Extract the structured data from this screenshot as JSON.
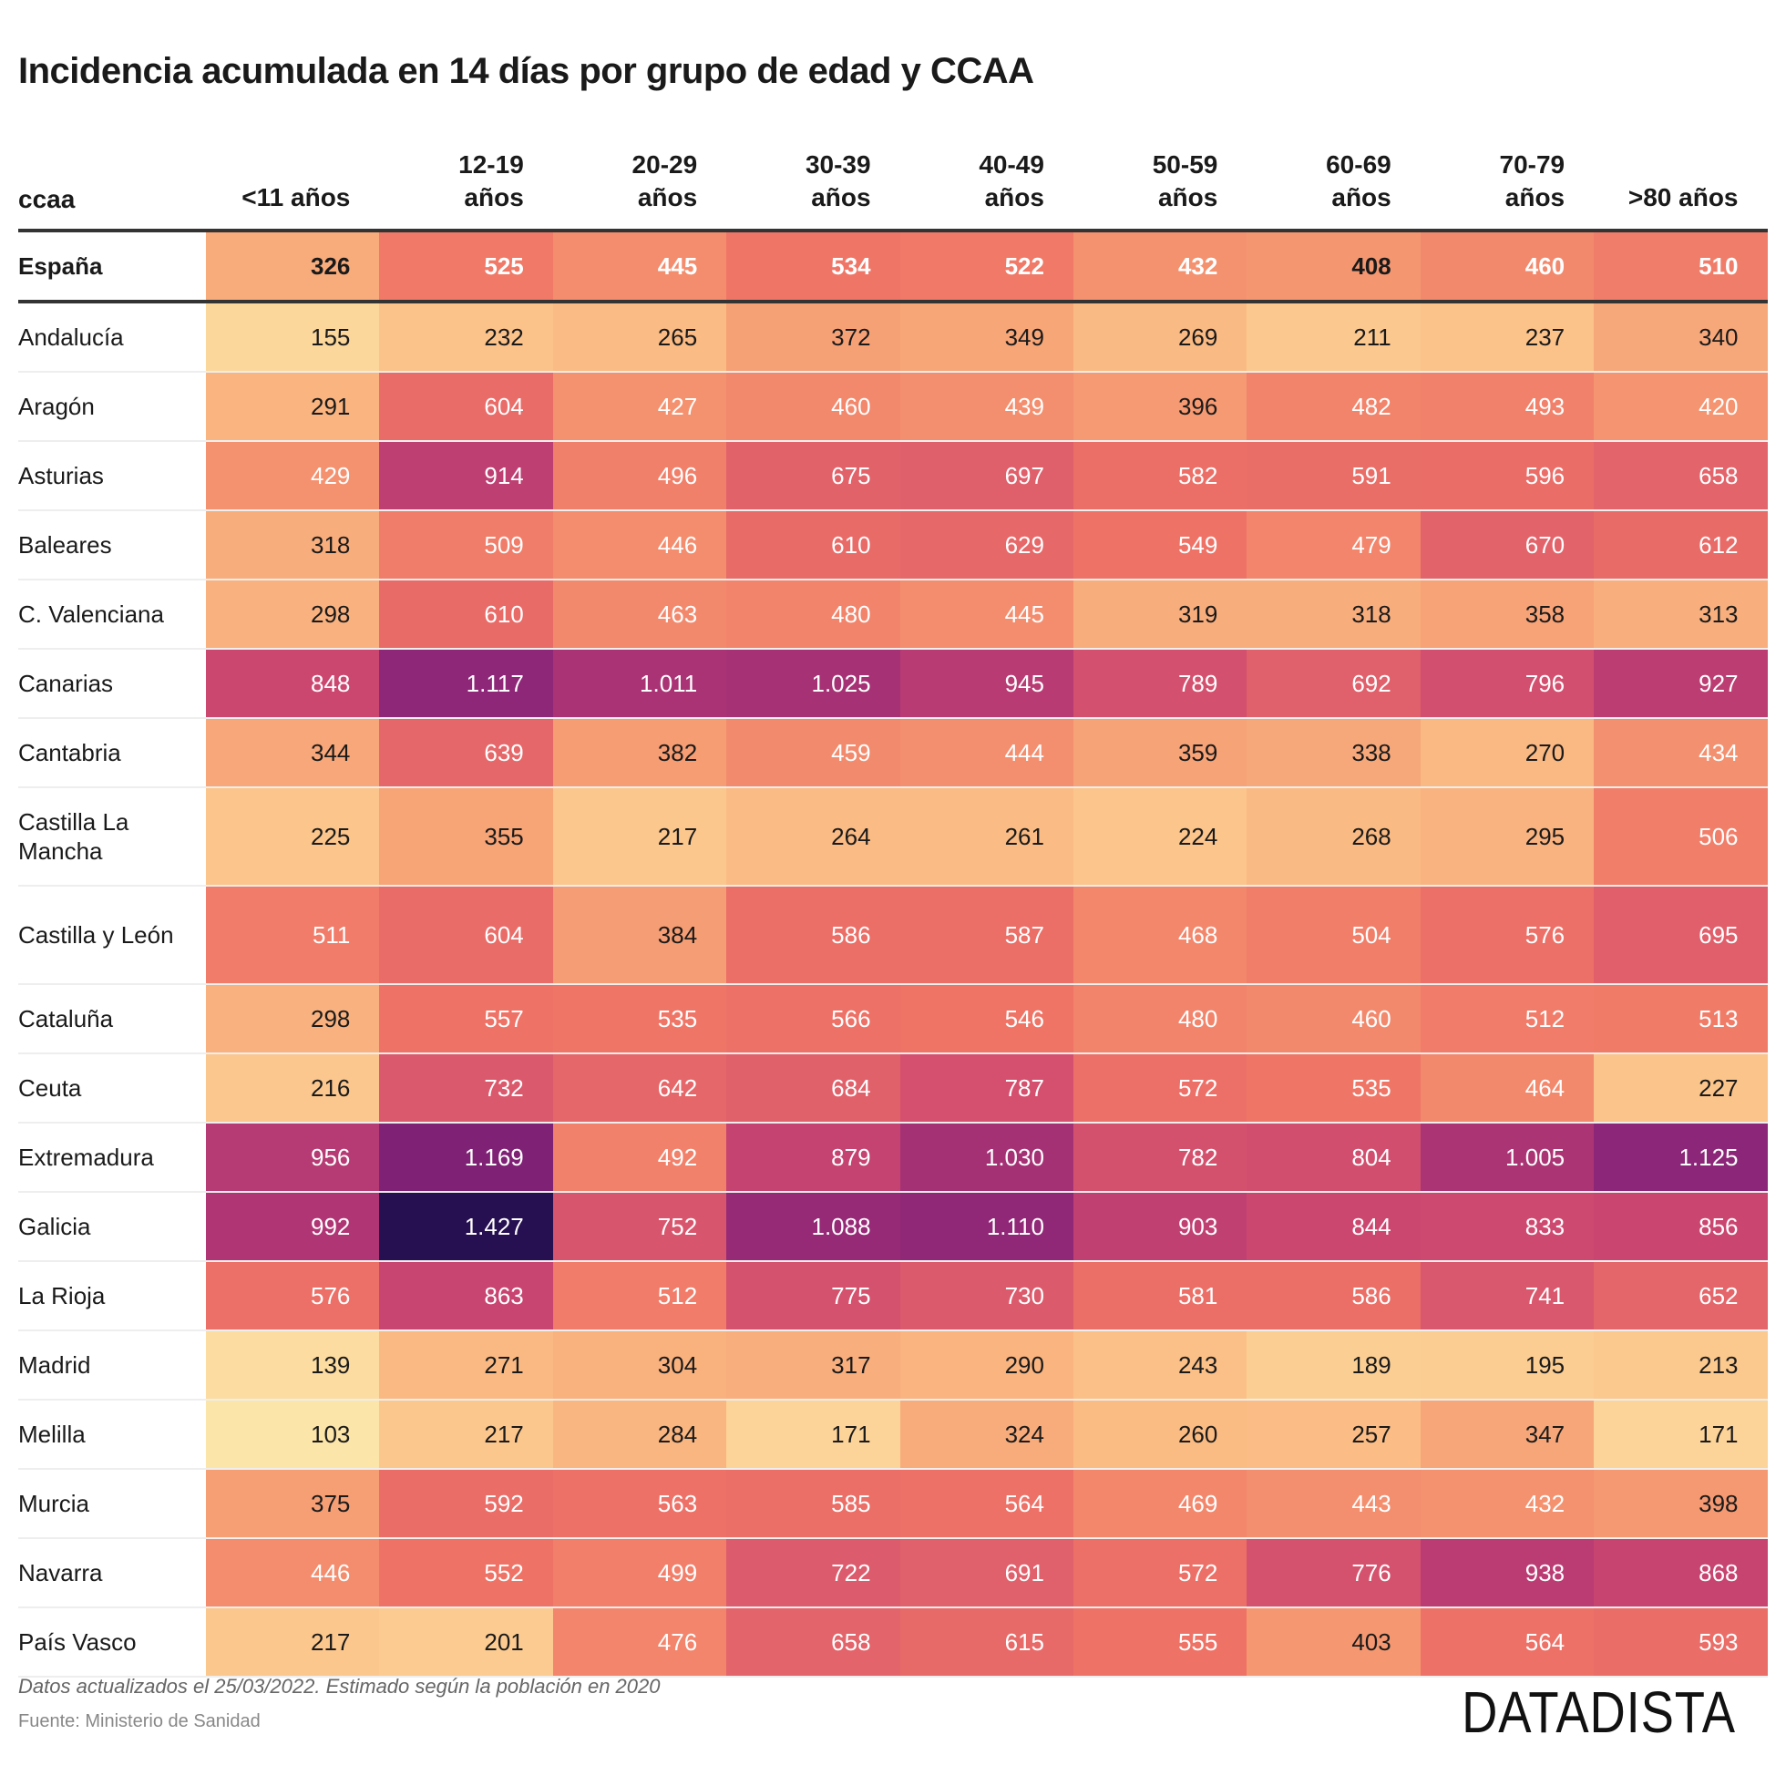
{
  "chart_data": {
    "type": "heatmap",
    "title": "Incidencia acumulada en 14 días por grupo de edad y CCAA",
    "row_header": "ccaa",
    "columns": [
      [
        "<11 años"
      ],
      [
        "12-19",
        "años"
      ],
      [
        "20-29",
        "años"
      ],
      [
        "30-39",
        "años"
      ],
      [
        "40-49",
        "años"
      ],
      [
        "50-59",
        "años"
      ],
      [
        "60-69",
        "años"
      ],
      [
        "70-79",
        "años"
      ],
      [
        ">80 años"
      ]
    ],
    "total_row": {
      "label": "España",
      "values": [
        326,
        525,
        445,
        534,
        522,
        432,
        408,
        460,
        510
      ]
    },
    "rows": [
      {
        "label": "Andalucía",
        "values": [
          155,
          232,
          265,
          372,
          349,
          269,
          211,
          237,
          340
        ]
      },
      {
        "label": "Aragón",
        "values": [
          291,
          604,
          427,
          460,
          439,
          396,
          482,
          493,
          420
        ]
      },
      {
        "label": "Asturias",
        "values": [
          429,
          914,
          496,
          675,
          697,
          582,
          591,
          596,
          658
        ]
      },
      {
        "label": "Baleares",
        "values": [
          318,
          509,
          446,
          610,
          629,
          549,
          479,
          670,
          612
        ]
      },
      {
        "label": "C. Valenciana",
        "values": [
          298,
          610,
          463,
          480,
          445,
          319,
          318,
          358,
          313
        ]
      },
      {
        "label": "Canarias",
        "values": [
          848,
          1117,
          1011,
          1025,
          945,
          789,
          692,
          796,
          927
        ]
      },
      {
        "label": "Cantabria",
        "values": [
          344,
          639,
          382,
          459,
          444,
          359,
          338,
          270,
          434
        ]
      },
      {
        "label": "Castilla La Mancha",
        "values": [
          225,
          355,
          217,
          264,
          261,
          224,
          268,
          295,
          506
        ]
      },
      {
        "label": "Castilla y León",
        "values": [
          511,
          604,
          384,
          586,
          587,
          468,
          504,
          576,
          695
        ]
      },
      {
        "label": "Cataluña",
        "values": [
          298,
          557,
          535,
          566,
          546,
          480,
          460,
          512,
          513
        ]
      },
      {
        "label": "Ceuta",
        "values": [
          216,
          732,
          642,
          684,
          787,
          572,
          535,
          464,
          227
        ]
      },
      {
        "label": "Extremadura",
        "values": [
          956,
          1169,
          492,
          879,
          1030,
          782,
          804,
          1005,
          1125
        ]
      },
      {
        "label": "Galicia",
        "values": [
          992,
          1427,
          752,
          1088,
          1110,
          903,
          844,
          833,
          856
        ]
      },
      {
        "label": "La Rioja",
        "values": [
          576,
          863,
          512,
          775,
          730,
          581,
          586,
          741,
          652
        ]
      },
      {
        "label": "Madrid",
        "values": [
          139,
          271,
          304,
          317,
          290,
          243,
          189,
          195,
          213
        ]
      },
      {
        "label": "Melilla",
        "values": [
          103,
          217,
          284,
          171,
          324,
          260,
          257,
          347,
          171
        ]
      },
      {
        "label": "Murcia",
        "values": [
          375,
          592,
          563,
          585,
          564,
          469,
          443,
          432,
          398
        ]
      },
      {
        "label": "Navarra",
        "values": [
          446,
          552,
          499,
          722,
          691,
          572,
          776,
          938,
          868
        ]
      },
      {
        "label": "País Vasco",
        "values": [
          217,
          201,
          476,
          658,
          615,
          555,
          403,
          564,
          593
        ]
      }
    ],
    "color_scale": [
      "#fce6a9",
      "#fbbf86",
      "#f59a72",
      "#ef7466",
      "#e0606b",
      "#cd4870",
      "#b03674",
      "#8a2578",
      "#5a1a6c",
      "#251050"
    ],
    "color_domain": [
      100,
      1430
    ]
  },
  "footer": {
    "note": "Datos actualizados el 25/03/2022. Estimado según la población en 2020",
    "source": "Fuente: Ministerio de Sanidad"
  },
  "logo": "DATADISTA"
}
